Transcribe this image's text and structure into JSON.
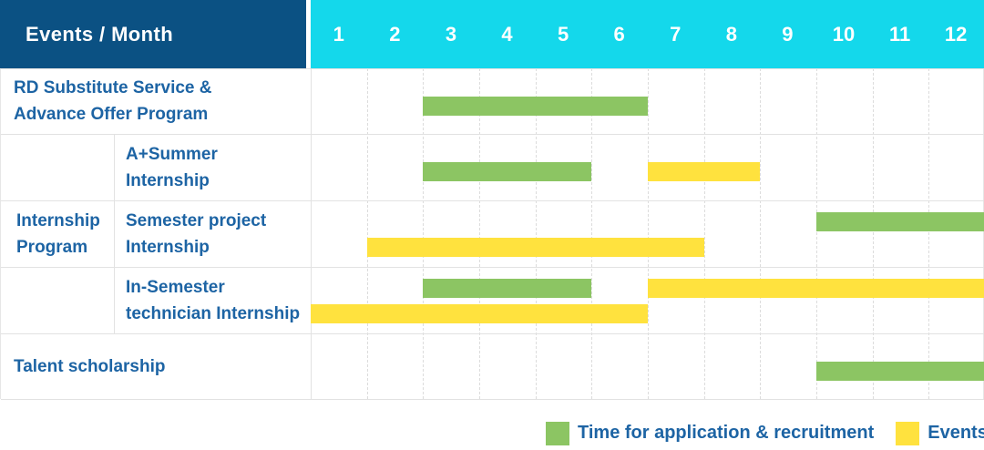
{
  "header": {
    "title": "Events / Month"
  },
  "colors": {
    "header_navy": "#0b5183",
    "header_cyan": "#14d8eb",
    "label_blue": "#1d64a4",
    "application_green": "#8cc563",
    "events_yellow": "#ffe23e"
  },
  "chart_data": {
    "type": "gantt",
    "title": "Events / Month",
    "months": [
      "1",
      "2",
      "3",
      "4",
      "5",
      "6",
      "7",
      "8",
      "9",
      "10",
      "11",
      "12"
    ],
    "x_range": [
      1,
      12
    ],
    "grid": "dashed-vertical-month-lines",
    "series_colors": {
      "application": "#8cc563",
      "events": "#ffe23e"
    },
    "rows": [
      {
        "label": "RD Substitute Service &\nAdvance Offer Program",
        "group": null,
        "bars": [
          {
            "series": "application",
            "start": 3,
            "end": 6,
            "band": "single"
          }
        ]
      },
      {
        "label": "A+Summer\nInternship",
        "group": "Internship\nProgram",
        "bars": [
          {
            "series": "application",
            "start": 3,
            "end": 5,
            "band": "single"
          },
          {
            "series": "events",
            "start": 7,
            "end": 8,
            "band": "single"
          }
        ]
      },
      {
        "label": "Semester project\nInternship",
        "group": "Internship\nProgram",
        "bars": [
          {
            "series": "application",
            "start": 10,
            "end": 12,
            "band": "top"
          },
          {
            "series": "events",
            "start": 2,
            "end": 7,
            "band": "bottom"
          }
        ]
      },
      {
        "label": "In-Semester\ntechnician Internship",
        "group": "Internship\nProgram",
        "bars": [
          {
            "series": "application",
            "start": 3,
            "end": 5,
            "band": "top"
          },
          {
            "series": "events",
            "start": 7,
            "end": 12,
            "band": "top"
          },
          {
            "series": "events",
            "start": 1,
            "end": 6,
            "band": "bottom"
          }
        ]
      },
      {
        "label": "Talent scholarship",
        "group": null,
        "bars": [
          {
            "series": "application",
            "start": 10,
            "end": 12,
            "band": "single"
          }
        ]
      }
    ]
  },
  "legend": {
    "items": [
      {
        "series": "application",
        "label": "Time for application & recruitment",
        "color": "#8cc563"
      },
      {
        "series": "events",
        "label": "Events",
        "color": "#ffe23e"
      }
    ]
  }
}
